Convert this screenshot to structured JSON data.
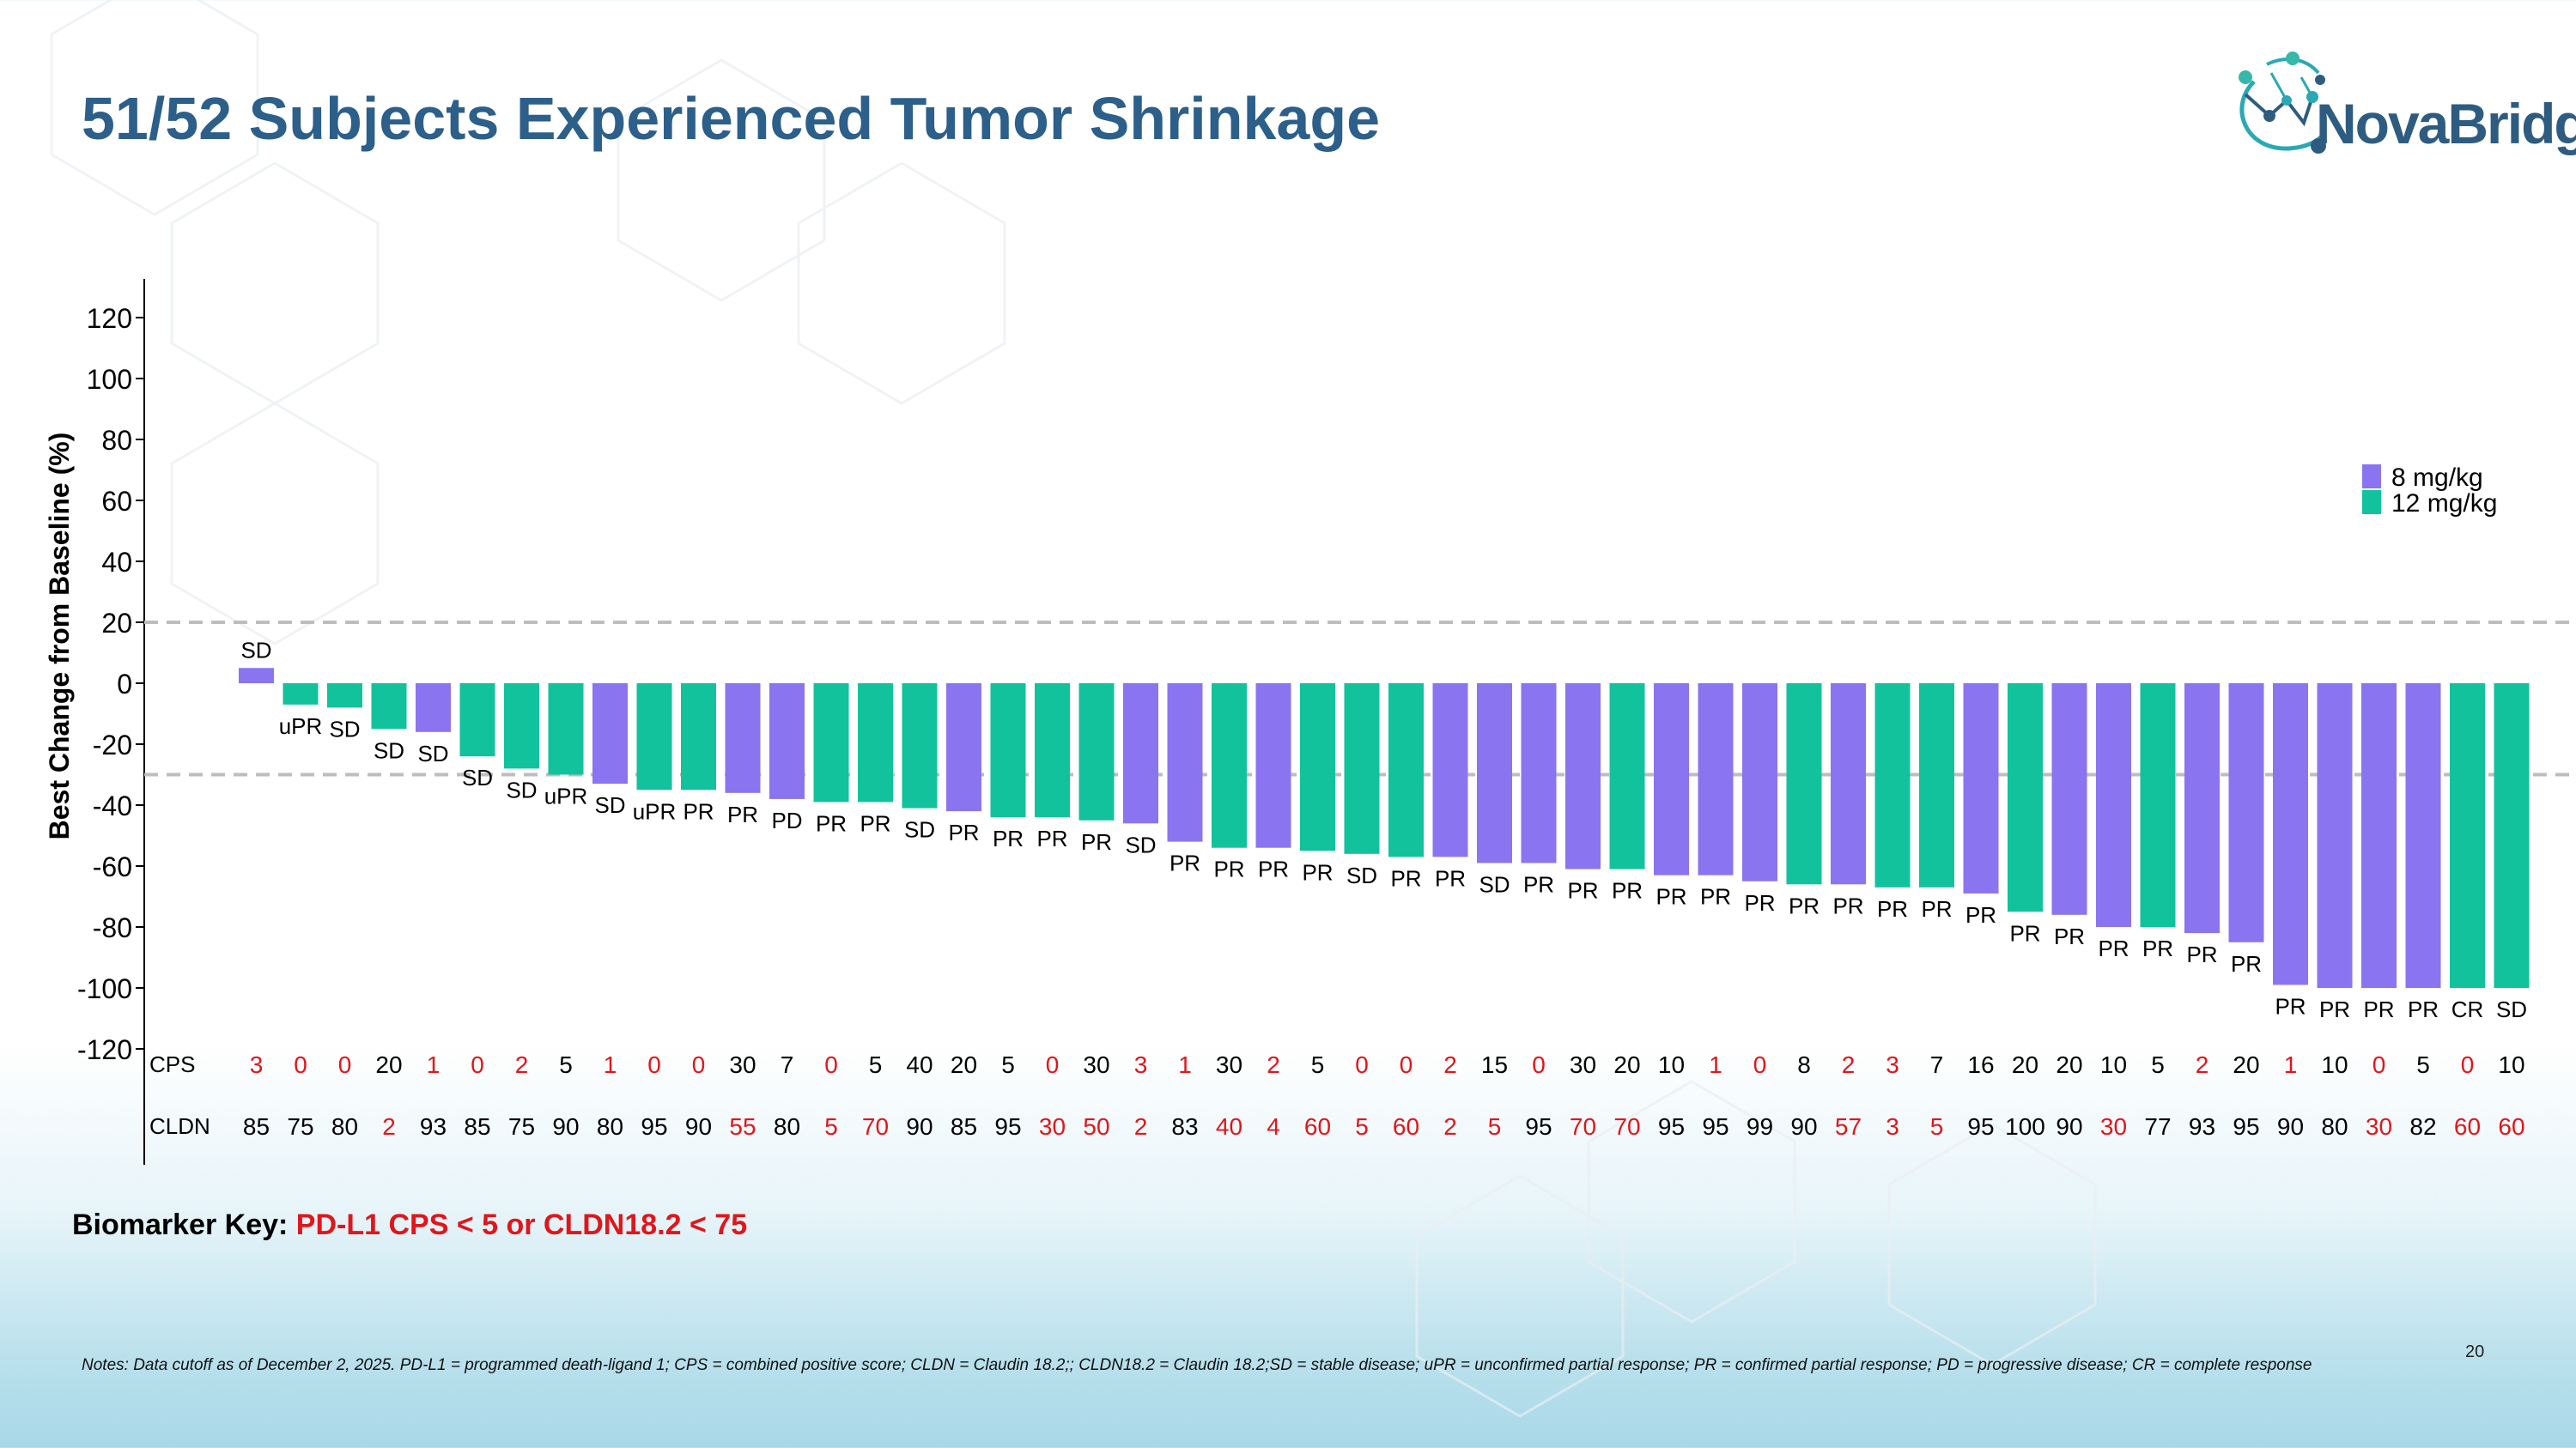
{
  "title": "51/52 Subjects Experienced Tumor Shrinkage",
  "logo": {
    "text": "NovaBridge"
  },
  "biomarker": {
    "label": "Biomarker Key:",
    "value": "PD-L1 CPS < 5 or CLDN18.2 < 75"
  },
  "notes": "Notes: Data cutoff as of December 2, 2025. PD-L1 = programmed death-ligand 1; CPS = combined positive score; CLDN = Claudin 18.2;; CLDN18.2 = Claudin 18.2;SD = stable disease; uPR = unconfirmed partial response; PR = confirmed partial response; PD = progressive disease; CR = complete response",
  "page_number": "20",
  "colors": {
    "dose8": "#8b74f0",
    "dose12": "#12c29c",
    "flag": "#e0161b",
    "title": "#2c5f8a"
  },
  "chart_data": {
    "type": "bar",
    "title": "",
    "xlabel": "",
    "ylabel": "Best Change from Baseline (%)",
    "ylim": [
      -120,
      120
    ],
    "yticks": [
      120,
      100,
      80,
      60,
      40,
      20,
      0,
      -20,
      -40,
      -60,
      -80,
      -100,
      -120
    ],
    "reference_lines": [
      20,
      -30
    ],
    "legend": {
      "position": "top-right",
      "entries": [
        {
          "label": "8 mg/kg",
          "dose": "8"
        },
        {
          "label": "12 mg/kg",
          "dose": "12"
        }
      ]
    },
    "row_labels": {
      "cps": "CPS",
      "cldn": "CLDN"
    },
    "bars": [
      {
        "value": 5,
        "dose": "8",
        "response": "SD",
        "cps": "3",
        "cps_flag": true,
        "cldn": "85",
        "cldn_flag": false
      },
      {
        "value": -7,
        "dose": "12",
        "response": "uPR",
        "cps": "0",
        "cps_flag": true,
        "cldn": "75",
        "cldn_flag": false
      },
      {
        "value": -8,
        "dose": "12",
        "response": "SD",
        "cps": "0",
        "cps_flag": true,
        "cldn": "80",
        "cldn_flag": false
      },
      {
        "value": -15,
        "dose": "12",
        "response": "SD",
        "cps": "20",
        "cps_flag": false,
        "cldn": "2",
        "cldn_flag": true
      },
      {
        "value": -16,
        "dose": "8",
        "response": "SD",
        "cps": "1",
        "cps_flag": true,
        "cldn": "93",
        "cldn_flag": false
      },
      {
        "value": -24,
        "dose": "12",
        "response": "SD",
        "cps": "0",
        "cps_flag": true,
        "cldn": "85",
        "cldn_flag": false
      },
      {
        "value": -28,
        "dose": "12",
        "response": "SD",
        "cps": "2",
        "cps_flag": true,
        "cldn": "75",
        "cldn_flag": false
      },
      {
        "value": -30,
        "dose": "12",
        "response": "uPR",
        "cps": "5",
        "cps_flag": false,
        "cldn": "90",
        "cldn_flag": false
      },
      {
        "value": -33,
        "dose": "8",
        "response": "SD",
        "cps": "1",
        "cps_flag": true,
        "cldn": "80",
        "cldn_flag": false
      },
      {
        "value": -35,
        "dose": "12",
        "response": "uPR",
        "cps": "0",
        "cps_flag": true,
        "cldn": "95",
        "cldn_flag": false
      },
      {
        "value": -35,
        "dose": "12",
        "response": "PR",
        "cps": "0",
        "cps_flag": true,
        "cldn": "90",
        "cldn_flag": false
      },
      {
        "value": -36,
        "dose": "8",
        "response": "PR",
        "cps": "30",
        "cps_flag": false,
        "cldn": "55",
        "cldn_flag": true
      },
      {
        "value": -38,
        "dose": "8",
        "response": "PD",
        "cps": "7",
        "cps_flag": false,
        "cldn": "80",
        "cldn_flag": false
      },
      {
        "value": -39,
        "dose": "12",
        "response": "PR",
        "cps": "0",
        "cps_flag": true,
        "cldn": "5",
        "cldn_flag": true
      },
      {
        "value": -39,
        "dose": "12",
        "response": "PR",
        "cps": "5",
        "cps_flag": false,
        "cldn": "70",
        "cldn_flag": true
      },
      {
        "value": -41,
        "dose": "12",
        "response": "SD",
        "cps": "40",
        "cps_flag": false,
        "cldn": "90",
        "cldn_flag": false
      },
      {
        "value": -42,
        "dose": "8",
        "response": "PR",
        "cps": "20",
        "cps_flag": false,
        "cldn": "85",
        "cldn_flag": false
      },
      {
        "value": -44,
        "dose": "12",
        "response": "PR",
        "cps": "5",
        "cps_flag": false,
        "cldn": "95",
        "cldn_flag": false
      },
      {
        "value": -44,
        "dose": "12",
        "response": "PR",
        "cps": "0",
        "cps_flag": true,
        "cldn": "30",
        "cldn_flag": true
      },
      {
        "value": -45,
        "dose": "12",
        "response": "PR",
        "cps": "30",
        "cps_flag": false,
        "cldn": "50",
        "cldn_flag": true
      },
      {
        "value": -46,
        "dose": "8",
        "response": "SD",
        "cps": "3",
        "cps_flag": true,
        "cldn": "2",
        "cldn_flag": true
      },
      {
        "value": -52,
        "dose": "8",
        "response": "PR",
        "cps": "1",
        "cps_flag": true,
        "cldn": "83",
        "cldn_flag": false
      },
      {
        "value": -54,
        "dose": "12",
        "response": "PR",
        "cps": "30",
        "cps_flag": false,
        "cldn": "40",
        "cldn_flag": true
      },
      {
        "value": -54,
        "dose": "8",
        "response": "PR",
        "cps": "2",
        "cps_flag": true,
        "cldn": "4",
        "cldn_flag": true
      },
      {
        "value": -55,
        "dose": "12",
        "response": "PR",
        "cps": "5",
        "cps_flag": false,
        "cldn": "60",
        "cldn_flag": true
      },
      {
        "value": -56,
        "dose": "12",
        "response": "SD",
        "cps": "0",
        "cps_flag": true,
        "cldn": "5",
        "cldn_flag": true
      },
      {
        "value": -57,
        "dose": "12",
        "response": "PR",
        "cps": "0",
        "cps_flag": true,
        "cldn": "60",
        "cldn_flag": true
      },
      {
        "value": -57,
        "dose": "8",
        "response": "PR",
        "cps": "2",
        "cps_flag": true,
        "cldn": "2",
        "cldn_flag": true
      },
      {
        "value": -59,
        "dose": "8",
        "response": "SD",
        "cps": "15",
        "cps_flag": false,
        "cldn": "5",
        "cldn_flag": true
      },
      {
        "value": -59,
        "dose": "8",
        "response": "PR",
        "cps": "0",
        "cps_flag": true,
        "cldn": "95",
        "cldn_flag": false
      },
      {
        "value": -61,
        "dose": "8",
        "response": "PR",
        "cps": "30",
        "cps_flag": false,
        "cldn": "70",
        "cldn_flag": true
      },
      {
        "value": -61,
        "dose": "12",
        "response": "PR",
        "cps": "20",
        "cps_flag": false,
        "cldn": "70",
        "cldn_flag": true
      },
      {
        "value": -63,
        "dose": "8",
        "response": "PR",
        "cps": "10",
        "cps_flag": false,
        "cldn": "95",
        "cldn_flag": false
      },
      {
        "value": -63,
        "dose": "8",
        "response": "PR",
        "cps": "1",
        "cps_flag": true,
        "cldn": "95",
        "cldn_flag": false
      },
      {
        "value": -65,
        "dose": "8",
        "response": "PR",
        "cps": "0",
        "cps_flag": true,
        "cldn": "99",
        "cldn_flag": false
      },
      {
        "value": -66,
        "dose": "12",
        "response": "PR",
        "cps": "8",
        "cps_flag": false,
        "cldn": "90",
        "cldn_flag": false
      },
      {
        "value": -66,
        "dose": "8",
        "response": "PR",
        "cps": "2",
        "cps_flag": true,
        "cldn": "57",
        "cldn_flag": true
      },
      {
        "value": -67,
        "dose": "12",
        "response": "PR",
        "cps": "3",
        "cps_flag": true,
        "cldn": "3",
        "cldn_flag": true
      },
      {
        "value": -67,
        "dose": "12",
        "response": "PR",
        "cps": "7",
        "cps_flag": false,
        "cldn": "5",
        "cldn_flag": true
      },
      {
        "value": -69,
        "dose": "8",
        "response": "PR",
        "cps": "16",
        "cps_flag": false,
        "cldn": "95",
        "cldn_flag": false
      },
      {
        "value": -75,
        "dose": "12",
        "response": "PR",
        "cps": "20",
        "cps_flag": false,
        "cldn": "100",
        "cldn_flag": false
      },
      {
        "value": -76,
        "dose": "8",
        "response": "PR",
        "cps": "20",
        "cps_flag": false,
        "cldn": "90",
        "cldn_flag": false
      },
      {
        "value": -80,
        "dose": "8",
        "response": "PR",
        "cps": "10",
        "cps_flag": false,
        "cldn": "30",
        "cldn_flag": true
      },
      {
        "value": -80,
        "dose": "12",
        "response": "PR",
        "cps": "5",
        "cps_flag": false,
        "cldn": "77",
        "cldn_flag": false
      },
      {
        "value": -82,
        "dose": "8",
        "response": "PR",
        "cps": "2",
        "cps_flag": true,
        "cldn": "93",
        "cldn_flag": false
      },
      {
        "value": -85,
        "dose": "8",
        "response": "PR",
        "cps": "20",
        "cps_flag": false,
        "cldn": "95",
        "cldn_flag": false
      },
      {
        "value": -99,
        "dose": "8",
        "response": "PR",
        "cps": "1",
        "cps_flag": true,
        "cldn": "90",
        "cldn_flag": false
      },
      {
        "value": -100,
        "dose": "8",
        "response": "PR",
        "cps": "10",
        "cps_flag": false,
        "cldn": "80",
        "cldn_flag": false
      },
      {
        "value": -100,
        "dose": "8",
        "response": "PR",
        "cps": "0",
        "cps_flag": true,
        "cldn": "30",
        "cldn_flag": true
      },
      {
        "value": -100,
        "dose": "8",
        "response": "PR",
        "cps": "5",
        "cps_flag": false,
        "cldn": "82",
        "cldn_flag": false
      },
      {
        "value": -100,
        "dose": "12",
        "response": "CR",
        "cps": "0",
        "cps_flag": true,
        "cldn": "60",
        "cldn_flag": true
      },
      {
        "value": -100,
        "dose": "12",
        "response": "SD",
        "cps": "10",
        "cps_flag": false,
        "cldn": "60",
        "cldn_flag": true
      }
    ]
  }
}
